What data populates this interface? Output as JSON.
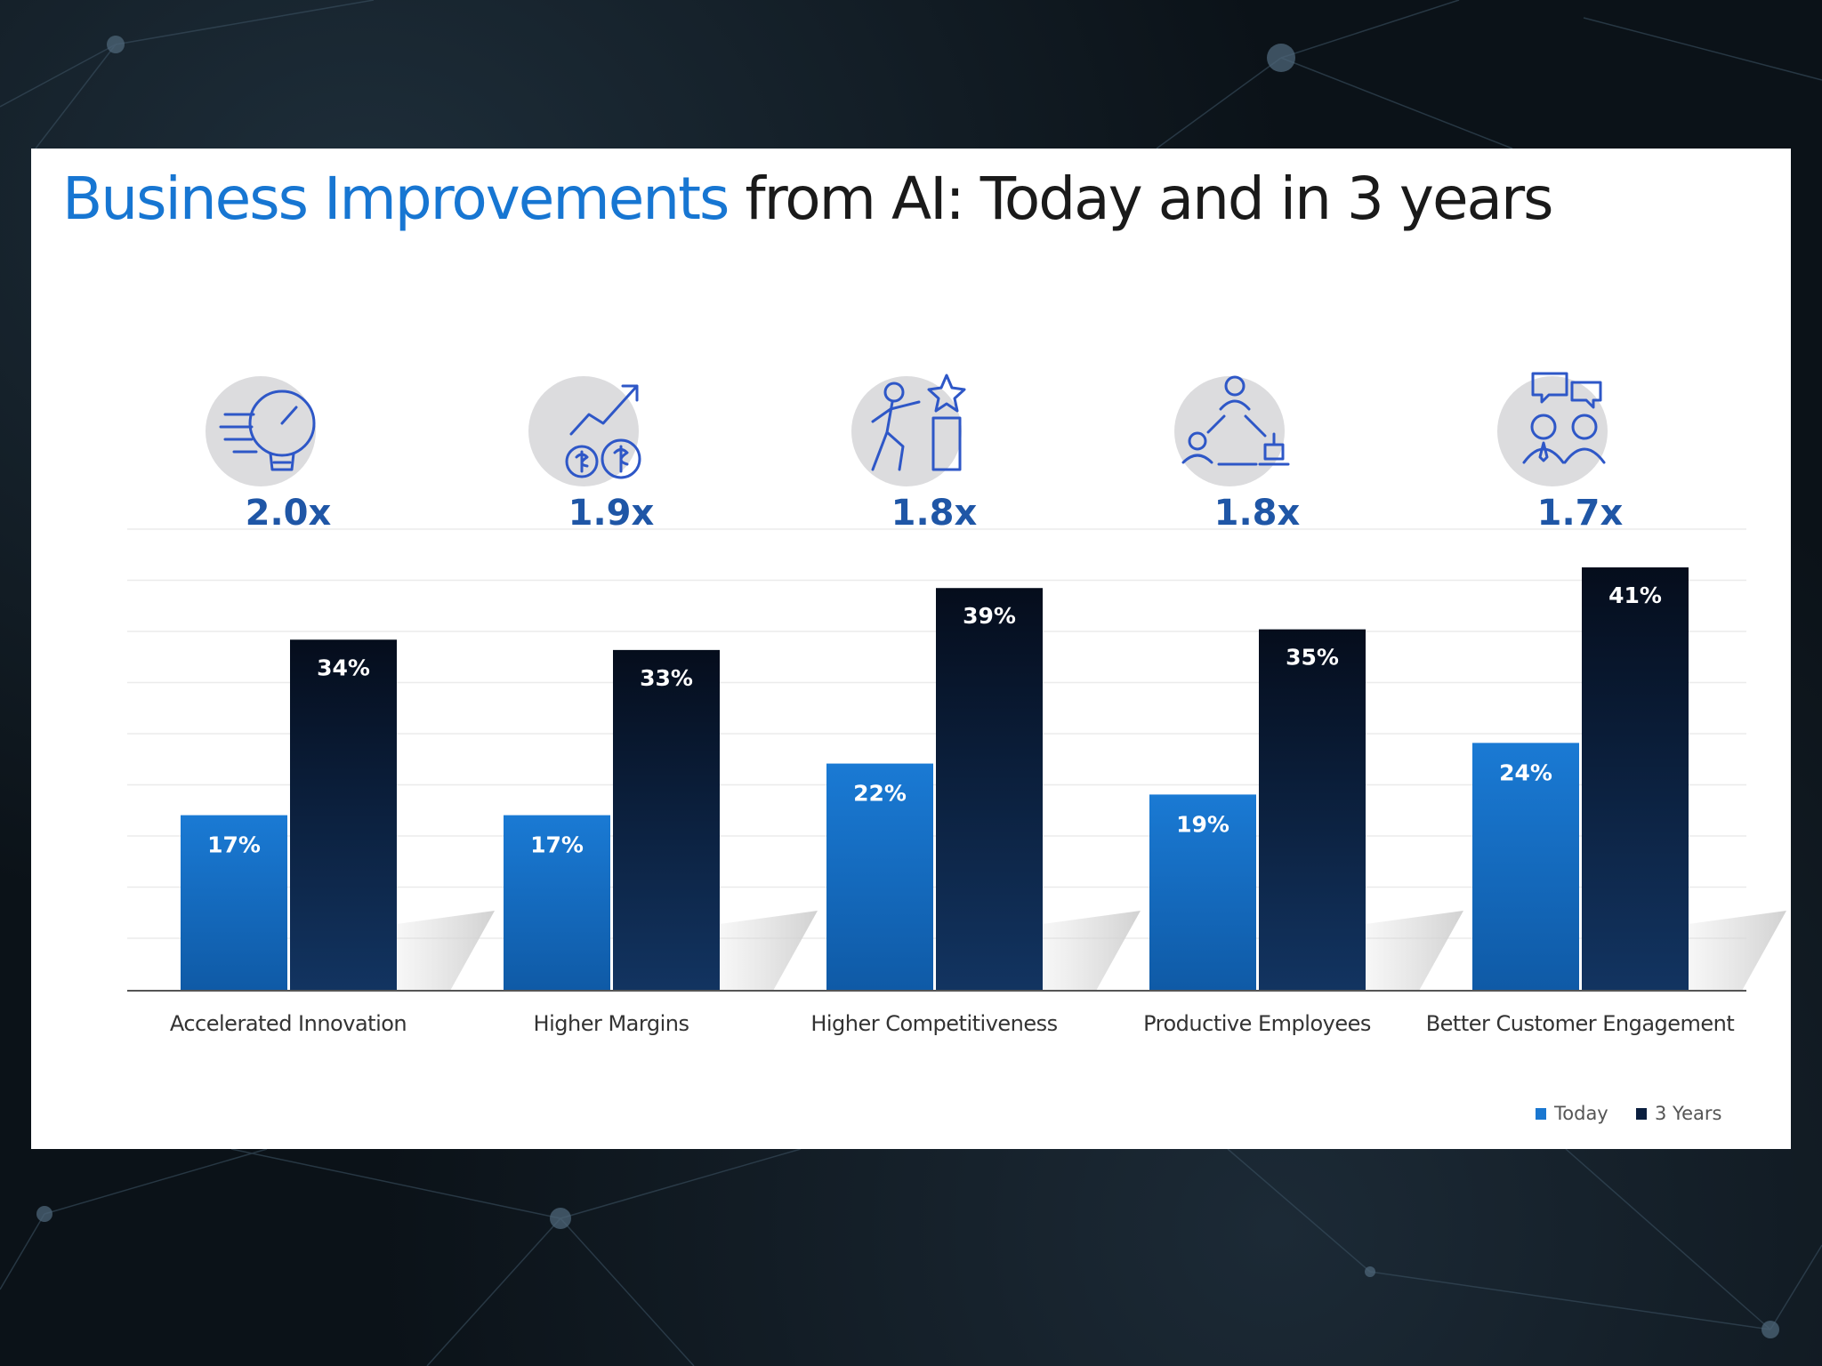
{
  "title": {
    "highlight": "Business Improvements",
    "rest": " from AI: Today and in 3 years"
  },
  "colors": {
    "today": "#1a77d0",
    "three_years": "#0b1f3f",
    "title_highlight": "#1776d2",
    "multiplier": "#1f56a6",
    "icon_stroke": "#2e57c7",
    "icon_bg": "#dcdcde"
  },
  "chart_data": {
    "type": "bar",
    "title": "Business Improvements from AI: Today and in 3 years",
    "categories": [
      "Accelerated Innovation",
      "Higher Margins",
      "Higher Competitiveness",
      "Productive Employees",
      "Better Customer Engagement"
    ],
    "series": [
      {
        "name": "Today",
        "values": [
          17,
          17,
          22,
          19,
          24
        ],
        "labels": [
          "17%",
          "17%",
          "22%",
          "19%",
          "24%"
        ]
      },
      {
        "name": "3 Years",
        "values": [
          34,
          33,
          39,
          35,
          41
        ],
        "labels": [
          "34%",
          "33%",
          "39%",
          "35%",
          "41%"
        ]
      }
    ],
    "multipliers": [
      "2.0x",
      "1.9x",
      "1.8x",
      "1.8x",
      "1.7x"
    ],
    "icons": [
      "lightbulb-icon",
      "dollar-growth-icon",
      "runner-trophy-icon",
      "team-network-icon",
      "customer-chat-icon"
    ],
    "ylim": [
      0,
      41
    ],
    "grid": true,
    "legend": "bottom-right"
  }
}
